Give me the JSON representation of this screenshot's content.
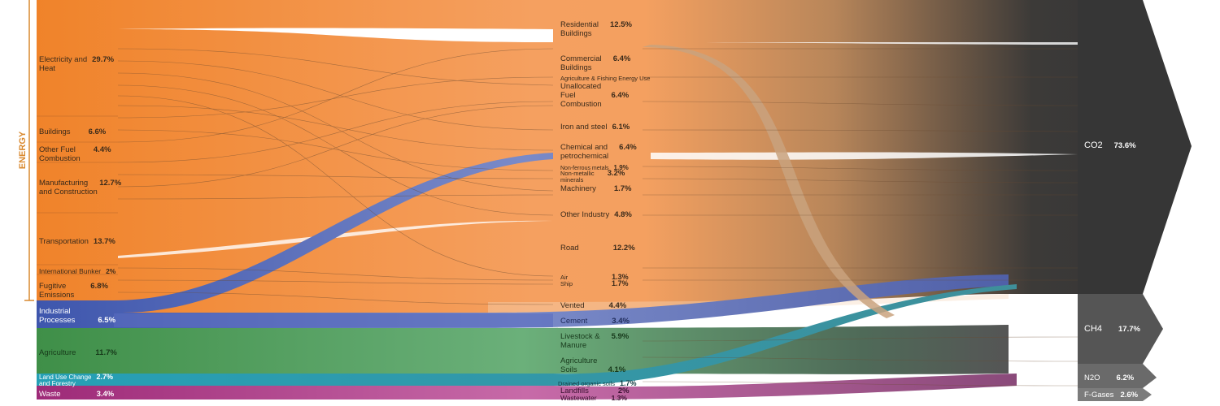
{
  "group_label": "ENERGY",
  "colors": {
    "energy": "#f28a30",
    "energy_light": "#f5a868",
    "industrial": "#4a63b5",
    "agriculture": "#4e9a4e",
    "land_use": "#2aa3b8",
    "waste": "#a3337e",
    "co2": "#3a3a3a",
    "ch4": "#555555",
    "n2o": "#6a6a6a",
    "fgases": "#7c7c7c",
    "energy_tag": "#d9892f"
  },
  "sources": [
    {
      "name": "Electricity and Heat",
      "lines": [
        "Electricity and",
        "Heat"
      ],
      "pct": "29.7%"
    },
    {
      "name": "Buildings",
      "lines": [
        "Buildings"
      ],
      "pct": "6.6%"
    },
    {
      "name": "Other Fuel Combustion",
      "lines": [
        "Other Fuel",
        "Combustion"
      ],
      "pct": "4.4%"
    },
    {
      "name": "Manufacturing and Construction",
      "lines": [
        "Manufacturing",
        "and Construction"
      ],
      "pct": "12.7%"
    },
    {
      "name": "Transportation",
      "lines": [
        "Transportation"
      ],
      "pct": "13.7%"
    },
    {
      "name": "International Bunker",
      "lines": [
        "International Bunker"
      ],
      "pct": "2%"
    },
    {
      "name": "Fugitive Emissions",
      "lines": [
        "Fugitive",
        "Emissions"
      ],
      "pct": "6.8%"
    },
    {
      "name": "Industrial Processes",
      "lines": [
        "Industrial",
        "Processes"
      ],
      "pct": "6.5%"
    },
    {
      "name": "Agriculture",
      "lines": [
        "Agriculture"
      ],
      "pct": "11.7%"
    },
    {
      "name": "Land Use Change and Forestry",
      "lines": [
        "Land Use Change",
        "and Forestry"
      ],
      "pct": "2.7%"
    },
    {
      "name": "Waste",
      "lines": [
        "Waste"
      ],
      "pct": "3.4%"
    }
  ],
  "sectors": [
    {
      "name": "Residential Buildings",
      "lines": [
        "Residential",
        "Buildings"
      ],
      "pct": "12.5%"
    },
    {
      "name": "Commercial Buildings",
      "lines": [
        "Commercial",
        "Buildings"
      ],
      "pct": "6.4%"
    },
    {
      "name": "Agriculture & Fishing Energy Use",
      "lines": [
        "Agriculture & Fishing Energy Use"
      ],
      "pct": ""
    },
    {
      "name": "Unallocated Fuel Combustion",
      "lines": [
        "Unallocated",
        "Fuel",
        "Combustion"
      ],
      "pct": "6.4%"
    },
    {
      "name": "Iron and steel",
      "lines": [
        "Iron and steel"
      ],
      "pct": "6.1%"
    },
    {
      "name": "Chemical and petrochemical",
      "lines": [
        "Chemical and",
        "petrochemical"
      ],
      "pct": "6.4%"
    },
    {
      "name": "Non-ferrous metals",
      "lines": [
        "Non-ferrous metals"
      ],
      "pct": "1.9%"
    },
    {
      "name": "Non-metallic minerals",
      "lines": [
        "Non-metallic",
        "minerals"
      ],
      "pct": "3.2%"
    },
    {
      "name": "Machinery",
      "lines": [
        "Machinery"
      ],
      "pct": "1.7%"
    },
    {
      "name": "Other Industry",
      "lines": [
        "Other Industry"
      ],
      "pct": "4.8%"
    },
    {
      "name": "Road",
      "lines": [
        "Road"
      ],
      "pct": "12.2%"
    },
    {
      "name": "Air",
      "lines": [
        "Air"
      ],
      "pct": "1.3%"
    },
    {
      "name": "Ship",
      "lines": [
        "Ship"
      ],
      "pct": "1.7%"
    },
    {
      "name": "Vented",
      "lines": [
        "Vented"
      ],
      "pct": "4.4%"
    },
    {
      "name": "Cement",
      "lines": [
        "Cement"
      ],
      "pct": "3.4%"
    },
    {
      "name": "Livestock & Manure",
      "lines": [
        "Livestock &",
        "Manure"
      ],
      "pct": "5.9%"
    },
    {
      "name": "Agriculture Soils",
      "lines": [
        "Agriculture",
        "Soils"
      ],
      "pct": "4.1%"
    },
    {
      "name": "Drained organic soils",
      "lines": [
        "Drained organic soils"
      ],
      "pct": "1.7%"
    },
    {
      "name": "Landfills",
      "lines": [
        "Landfills"
      ],
      "pct": "2%"
    },
    {
      "name": "Wastewater",
      "lines": [
        "Wastewater"
      ],
      "pct": "1.3%"
    }
  ],
  "gases": [
    {
      "name": "CO2",
      "pct": "73.6%"
    },
    {
      "name": "CH4",
      "pct": "17.7%"
    },
    {
      "name": "N2O",
      "pct": "6.2%"
    },
    {
      "name": "F-Gases",
      "pct": "2.6%"
    }
  ]
}
